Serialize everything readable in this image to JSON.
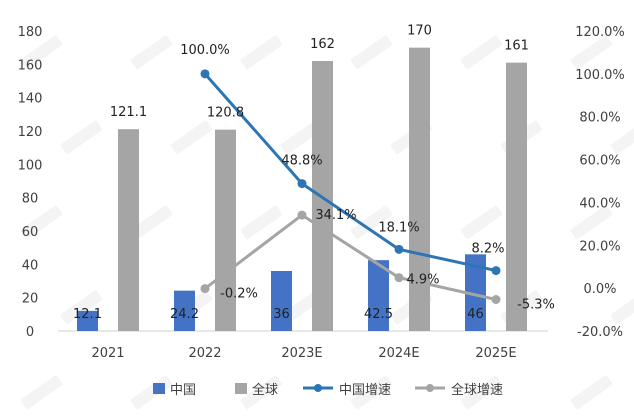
{
  "chart_data": {
    "type": "bar",
    "categories": [
      "2021",
      "2022",
      "2023E",
      "2024E",
      "2025E"
    ],
    "series": [
      {
        "name": "中国",
        "kind": "bar",
        "axis": "left",
        "color": "#4472C4",
        "values": [
          12.1,
          24.2,
          36,
          42.5,
          46
        ],
        "labels": [
          "12.1",
          "24.2",
          "36",
          "42.5",
          "46"
        ]
      },
      {
        "name": "全球",
        "kind": "bar",
        "axis": "left",
        "color": "#A5A5A5",
        "values": [
          121.1,
          120.8,
          162,
          170,
          161
        ],
        "labels": [
          "121.1",
          "120.8",
          "162",
          "170",
          "161"
        ]
      },
      {
        "name": "中国增速",
        "kind": "line",
        "axis": "right",
        "color": "#2E75B6",
        "values": [
          null,
          100.0,
          48.8,
          18.1,
          8.2
        ],
        "labels": [
          "",
          "100.0%",
          "48.8%",
          "18.1%",
          "8.2%"
        ]
      },
      {
        "name": "全球增速",
        "kind": "line",
        "axis": "right",
        "color": "#A5A5A5",
        "values": [
          null,
          -0.2,
          34.1,
          4.9,
          -5.3
        ],
        "labels": [
          "",
          "-0.2%",
          "34.1%",
          "4.9%",
          "-5.3%"
        ]
      }
    ],
    "y_left": {
      "range": [
        0,
        180
      ],
      "ticks": [
        "0",
        "20",
        "40",
        "60",
        "80",
        "100",
        "120",
        "140",
        "160",
        "180"
      ]
    },
    "y_right": {
      "range": [
        -20,
        120
      ],
      "ticks": [
        "-20.0%",
        "0.0%",
        "20.0%",
        "40.0%",
        "60.0%",
        "80.0%",
        "100.0%",
        "120.0%"
      ]
    },
    "grid": false,
    "legend": "bottom",
    "title": "",
    "xlabel": "",
    "ylabel": ""
  }
}
